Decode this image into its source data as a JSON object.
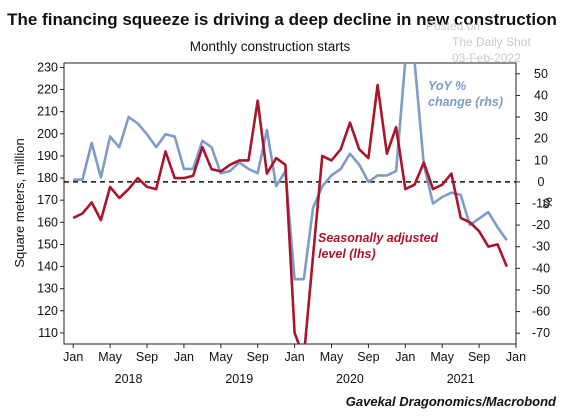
{
  "chart_data": {
    "type": "line",
    "title": "The financing squeeze is driving a deep decline in new construction",
    "subtitle": "Monthly construction starts",
    "ylabel_left": "Square meters, million",
    "ylabel_right": "%",
    "source": "Gavekal Dragonomics/Macrobond",
    "watermark": [
      "Posted on",
      "The Daily Shot",
      "03-Feb-2022"
    ],
    "left_axis": {
      "min": 105,
      "max": 232,
      "ticks": [
        110,
        120,
        130,
        140,
        150,
        160,
        170,
        180,
        190,
        200,
        210,
        220,
        230
      ]
    },
    "right_axis": {
      "min": -75,
      "max": 55,
      "ticks": [
        50,
        40,
        30,
        20,
        10,
        0,
        -10,
        -20,
        -30,
        -40,
        -50,
        -60,
        -70
      ],
      "zero_dashed": true
    },
    "x_start": "2017-12",
    "x_end": "2022-01",
    "month_ticks": [
      {
        "label": "Jan",
        "month": "2018-01"
      },
      {
        "label": "May",
        "month": "2018-05"
      },
      {
        "label": "Sep",
        "month": "2018-09"
      },
      {
        "label": "Jan",
        "month": "2019-01"
      },
      {
        "label": "May",
        "month": "2019-05"
      },
      {
        "label": "Sep",
        "month": "2019-09"
      },
      {
        "label": "Jan",
        "month": "2020-01"
      },
      {
        "label": "May",
        "month": "2020-05"
      },
      {
        "label": "Sep",
        "month": "2020-09"
      },
      {
        "label": "Jan",
        "month": "2021-01"
      },
      {
        "label": "May",
        "month": "2021-05"
      },
      {
        "label": "Sep",
        "month": "2021-09"
      },
      {
        "label": "Jan",
        "month": "2022-01"
      }
    ],
    "year_labels": [
      {
        "label": "2018",
        "month": "2018-07"
      },
      {
        "label": "2019",
        "month": "2019-07"
      },
      {
        "label": "2020",
        "month": "2020-07"
      },
      {
        "label": "2021",
        "month": "2021-07"
      }
    ],
    "series": [
      {
        "name": "Seasonally adjusted level (lhs)",
        "axis": "left",
        "color": "#a8162b",
        "months": [
          "2018-01",
          "2018-02",
          "2018-03",
          "2018-04",
          "2018-05",
          "2018-06",
          "2018-07",
          "2018-08",
          "2018-09",
          "2018-10",
          "2018-11",
          "2018-12",
          "2019-01",
          "2019-02",
          "2019-03",
          "2019-04",
          "2019-05",
          "2019-06",
          "2019-07",
          "2019-08",
          "2019-09",
          "2019-10",
          "2019-11",
          "2019-12",
          "2020-01",
          "2020-02",
          "2020-03",
          "2020-04",
          "2020-05",
          "2020-06",
          "2020-07",
          "2020-08",
          "2020-09",
          "2020-10",
          "2020-11",
          "2020-12",
          "2021-01",
          "2021-02",
          "2021-03",
          "2021-04",
          "2021-05",
          "2021-06",
          "2021-07",
          "2021-08",
          "2021-09",
          "2021-10",
          "2021-11",
          "2021-12"
        ],
        "values": [
          162,
          164,
          169,
          161,
          176,
          171,
          175,
          180,
          176,
          175,
          192,
          180,
          180,
          181,
          194,
          184,
          183,
          186,
          188,
          188,
          215,
          182,
          189,
          186,
          110,
          99,
          145,
          190,
          188,
          193,
          205,
          193,
          189,
          222,
          191,
          203,
          175,
          177,
          187,
          175,
          177,
          182,
          162,
          160,
          156,
          149,
          150,
          140
        ]
      },
      {
        "name": "YoY % change (rhs)",
        "axis": "right",
        "color": "#7d9cc8",
        "months": [
          "2018-01",
          "2018-02",
          "2018-03",
          "2018-04",
          "2018-05",
          "2018-06",
          "2018-07",
          "2018-08",
          "2018-09",
          "2018-10",
          "2018-11",
          "2018-12",
          "2019-01",
          "2019-02",
          "2019-03",
          "2019-04",
          "2019-05",
          "2019-06",
          "2019-07",
          "2019-08",
          "2019-09",
          "2019-10",
          "2019-11",
          "2019-12",
          "2020-01",
          "2020-02",
          "2020-03",
          "2020-04",
          "2020-05",
          "2020-06",
          "2020-07",
          "2020-08",
          "2020-09",
          "2020-10",
          "2020-11",
          "2020-12",
          "2021-01",
          "2021-02",
          "2021-03",
          "2021-04",
          "2021-05",
          "2021-06",
          "2021-07",
          "2021-08",
          "2021-09",
          "2021-10",
          "2021-11",
          "2021-12"
        ],
        "values": [
          1,
          1,
          18,
          2,
          21,
          16,
          30,
          27,
          22,
          16,
          22,
          21,
          6,
          6,
          19,
          16,
          4,
          5,
          9,
          6,
          4,
          24,
          -2,
          5,
          -45,
          -45,
          -12,
          -2,
          3,
          6,
          13,
          8,
          0,
          3,
          3,
          5,
          56,
          56,
          8,
          -10,
          -7,
          -5,
          -6,
          -20,
          -17,
          -14,
          -21,
          -27
        ]
      }
    ],
    "annotations": [
      {
        "lines": [
          "YoY %",
          "change (rhs)"
        ],
        "series": 1
      },
      {
        "lines": [
          "Seasonally adjusted",
          "level (lhs)"
        ],
        "series": 0
      }
    ]
  }
}
